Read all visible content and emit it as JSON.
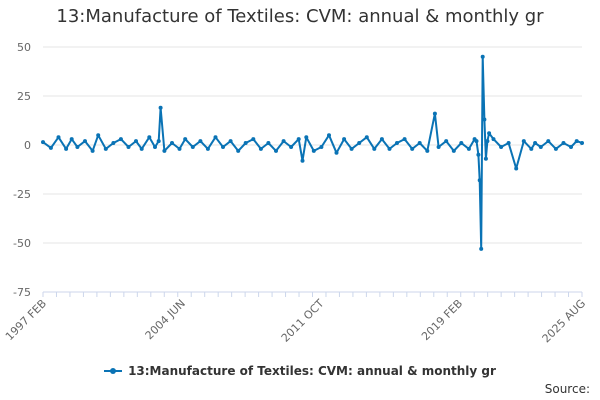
{
  "title": "13:Manufacture of Textiles: CVM: annual & monthly gr",
  "source_label": "Source:",
  "legend_label": "13:Manufacture of Textiles: CVM: annual & monthly gr",
  "colors": {
    "series": "#0a73b5",
    "grid": "#e6e6e6",
    "axis": "#ccd6eb"
  },
  "chart_data": {
    "type": "line",
    "title": "13:Manufacture of Textiles: CVM: annual & monthly gr",
    "xlabel": "",
    "ylabel": "",
    "ylim": [
      -75,
      50
    ],
    "yticks": [
      -75,
      -50,
      -25,
      0,
      25,
      50
    ],
    "xlim": [
      1997.08,
      2025.58
    ],
    "xticks": [
      {
        "label": "1997 FEB",
        "value": 1997.08
      },
      {
        "label": "2004 JUN",
        "value": 2004.42
      },
      {
        "label": "2011 OCT",
        "value": 2011.75
      },
      {
        "label": "2019 FEB",
        "value": 2019.08
      },
      {
        "label": "2025 AUG",
        "value": 2025.58
      }
    ],
    "grid": true,
    "legend_position": "bottom",
    "series": [
      {
        "name": "13:Manufacture of Textiles: CVM: annual & monthly gr",
        "x": [
          1997.08,
          1997.5,
          1997.9,
          1998.3,
          1998.6,
          1998.9,
          1999.3,
          1999.7,
          2000.0,
          2000.4,
          2000.8,
          2001.2,
          2001.6,
          2002.0,
          2002.3,
          2002.7,
          2003.0,
          2003.2,
          2003.3,
          2003.5,
          2003.9,
          2004.3,
          2004.6,
          2005.0,
          2005.4,
          2005.8,
          2006.2,
          2006.6,
          2007.0,
          2007.4,
          2007.8,
          2008.2,
          2008.6,
          2009.0,
          2009.4,
          2009.8,
          2010.2,
          2010.6,
          2010.8,
          2011.0,
          2011.4,
          2011.8,
          2012.2,
          2012.6,
          2013.0,
          2013.4,
          2013.8,
          2014.2,
          2014.6,
          2015.0,
          2015.4,
          2015.8,
          2016.2,
          2016.6,
          2017.0,
          2017.4,
          2017.8,
          2018.0,
          2018.4,
          2018.8,
          2019.2,
          2019.6,
          2019.9,
          2020.0,
          2020.1,
          2020.17,
          2020.25,
          2020.33,
          2020.42,
          2020.5,
          2020.58,
          2020.67,
          2020.9,
          2021.3,
          2021.7,
          2022.1,
          2022.5,
          2022.9,
          2023.1,
          2023.4,
          2023.8,
          2024.2,
          2024.6,
          2025.0,
          2025.3,
          2025.58
        ],
        "y": [
          1.5,
          -1.5,
          4,
          -2,
          3,
          -1,
          2,
          -3,
          5,
          -2,
          1,
          3,
          -1,
          2,
          -2,
          4,
          -1,
          2,
          19,
          -3,
          1,
          -2,
          3,
          -1,
          2,
          -2,
          4,
          -1,
          2,
          -3,
          1,
          3,
          -2,
          1,
          -3,
          2,
          -1,
          3,
          -8,
          4,
          -3,
          -1,
          5,
          -4,
          3,
          -2,
          1,
          4,
          -2,
          3,
          -2,
          1,
          3,
          -2,
          1,
          -3,
          16,
          -1,
          2,
          -3,
          1,
          -2,
          3,
          2,
          -5,
          -18,
          -53,
          45,
          13,
          -7,
          2,
          6,
          3,
          -1,
          1,
          -12,
          2,
          -2,
          1,
          -1,
          2,
          -2,
          1,
          -1,
          2,
          1
        ]
      }
    ]
  }
}
